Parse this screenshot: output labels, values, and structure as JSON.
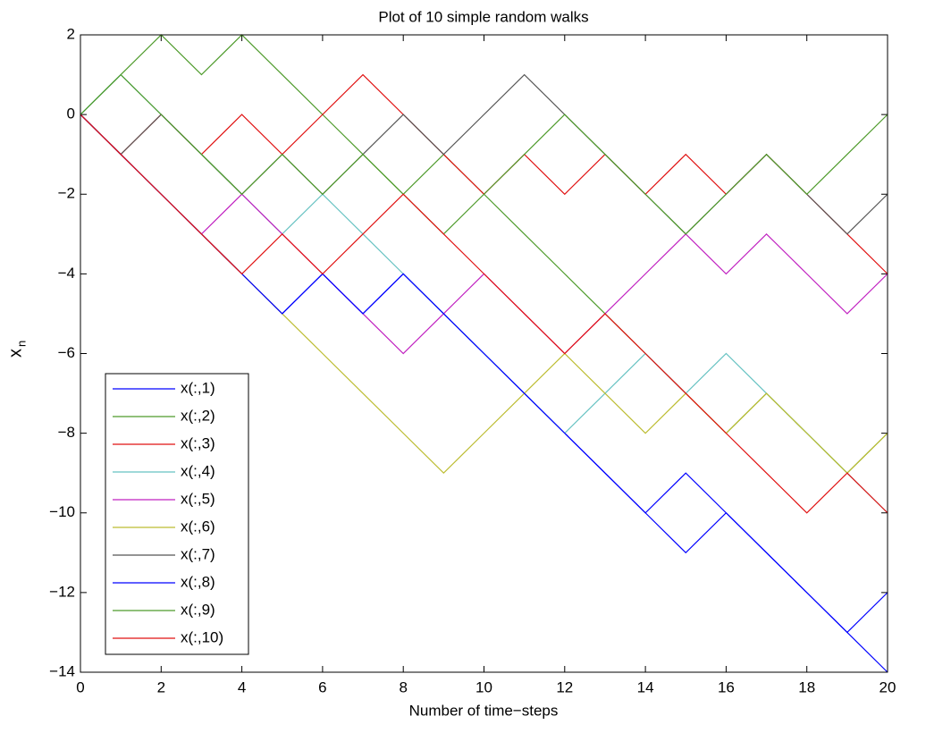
{
  "chart_data": {
    "type": "line",
    "title": "Plot of 10 simple random walks",
    "xlabel": "Number of time−steps",
    "ylabel": "x",
    "ylabel_subscript": "n",
    "x": [
      0,
      1,
      2,
      3,
      4,
      5,
      6,
      7,
      8,
      9,
      10,
      11,
      12,
      13,
      14,
      15,
      16,
      17,
      18,
      19,
      20
    ],
    "xlim": [
      0,
      20
    ],
    "xticks": [
      0,
      2,
      4,
      6,
      8,
      10,
      12,
      14,
      16,
      18,
      20
    ],
    "ylim": [
      -14,
      2
    ],
    "yticks": [
      {
        "value": -14,
        "label": "−14"
      },
      {
        "value": -12,
        "label": "−12"
      },
      {
        "value": -10,
        "label": "−10"
      },
      {
        "value": -8,
        "label": "−8"
      },
      {
        "value": -6,
        "label": "−6"
      },
      {
        "value": -4,
        "label": "−4"
      },
      {
        "value": -2,
        "label": "−2"
      },
      0,
      2
    ],
    "grid": false,
    "legend": "lower-left",
    "series": [
      {
        "name": "x(:,1)",
        "color": "#0000ff",
        "values": [
          0,
          -1,
          -2,
          -3,
          -4,
          -5,
          -4,
          -5,
          -4,
          -5,
          -6,
          -7,
          -8,
          -9,
          -10,
          -11,
          -10,
          -11,
          -12,
          -13,
          -14
        ]
      },
      {
        "name": "x(:,2)",
        "color": "#4d9a2a",
        "values": [
          0,
          1,
          2,
          1,
          2,
          1,
          0,
          -1,
          -2,
          -1,
          -2,
          -3,
          -4,
          -5,
          -6,
          -7,
          -8,
          -7,
          -8,
          -9,
          -8
        ]
      },
      {
        "name": "x(:,3)",
        "color": "#e01010",
        "values": [
          0,
          -1,
          0,
          -1,
          0,
          -1,
          0,
          1,
          0,
          -1,
          -2,
          -1,
          -2,
          -1,
          -2,
          -1,
          -2,
          -1,
          -2,
          -3,
          -4
        ]
      },
      {
        "name": "x(:,4)",
        "color": "#66c2c2",
        "values": [
          0,
          1,
          0,
          -1,
          -2,
          -3,
          -2,
          -3,
          -4,
          -5,
          -6,
          -7,
          -8,
          -7,
          -6,
          -7,
          -6,
          -7,
          -8,
          -9,
          -10
        ]
      },
      {
        "name": "x(:,5)",
        "color": "#c020c0",
        "values": [
          0,
          -1,
          -2,
          -3,
          -2,
          -3,
          -4,
          -5,
          -6,
          -5,
          -4,
          -5,
          -6,
          -5,
          -4,
          -3,
          -4,
          -3,
          -4,
          -5,
          -4
        ]
      },
      {
        "name": "x(:,6)",
        "color": "#bcbc30",
        "values": [
          0,
          -1,
          -2,
          -3,
          -4,
          -5,
          -6,
          -7,
          -8,
          -9,
          -8,
          -7,
          -6,
          -7,
          -8,
          -7,
          -8,
          -7,
          -8,
          -9,
          -8
        ]
      },
      {
        "name": "x(:,7)",
        "color": "#555555",
        "values": [
          0,
          -1,
          0,
          -1,
          -2,
          -1,
          -2,
          -1,
          0,
          -1,
          0,
          1,
          0,
          -1,
          -2,
          -3,
          -2,
          -1,
          -2,
          -3,
          -2
        ]
      },
      {
        "name": "x(:,8)",
        "color": "#0000ff",
        "values": [
          0,
          -1,
          -2,
          -3,
          -4,
          -5,
          -4,
          -5,
          -4,
          -5,
          -6,
          -7,
          -8,
          -9,
          -10,
          -9,
          -10,
          -11,
          -12,
          -13,
          -12
        ]
      },
      {
        "name": "x(:,9)",
        "color": "#4d9a2a",
        "values": [
          0,
          1,
          0,
          -1,
          -2,
          -1,
          -2,
          -1,
          -2,
          -3,
          -2,
          -1,
          0,
          -1,
          -2,
          -3,
          -2,
          -1,
          -2,
          -1,
          0
        ]
      },
      {
        "name": "x(:,10)",
        "color": "#e01010",
        "values": [
          0,
          -1,
          -2,
          -3,
          -4,
          -3,
          -4,
          -3,
          -2,
          -3,
          -4,
          -5,
          -6,
          -5,
          -6,
          -7,
          -8,
          -9,
          -10,
          -9,
          -10
        ]
      }
    ]
  }
}
